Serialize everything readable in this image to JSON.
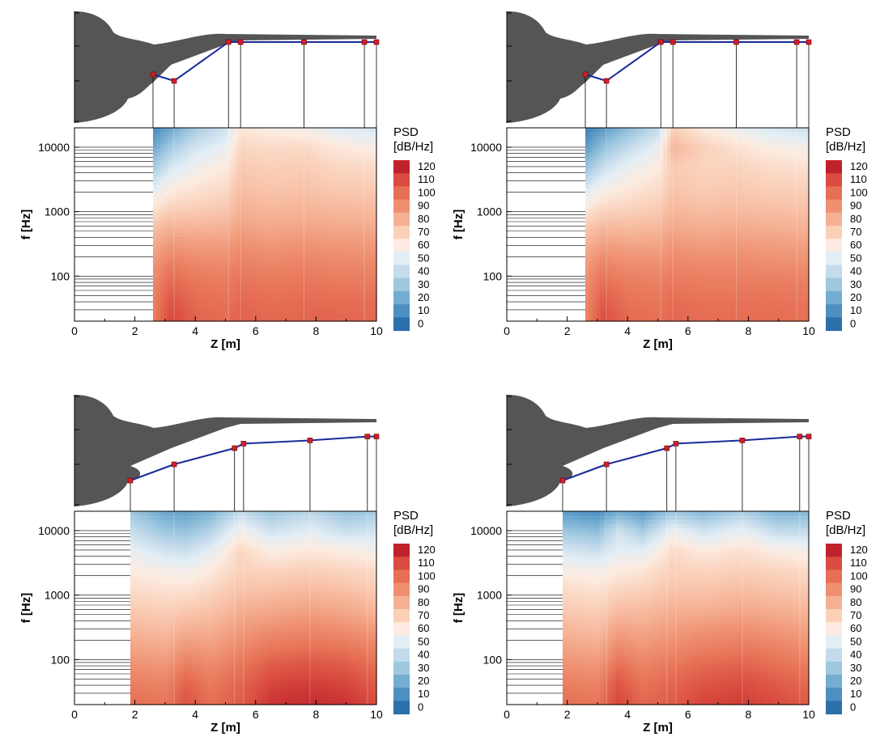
{
  "colorbar": {
    "title_line1": "PSD",
    "title_line2": "[dB/Hz]",
    "levels": [
      120,
      110,
      100,
      90,
      80,
      70,
      60,
      50,
      40,
      30,
      20,
      10,
      0
    ],
    "colors": [
      "#c0222c",
      "#d94c3f",
      "#e66f55",
      "#ee8f6f",
      "#f5b093",
      "#fad0b9",
      "#fcebe0",
      "#e4eef5",
      "#c3dbeb",
      "#9ec7e0",
      "#75add1",
      "#4d8fc0",
      "#2c6fab"
    ]
  },
  "chart_data": [
    {
      "type": "heatmap",
      "panel": "top-left",
      "xlabel": "Z [m]",
      "ylabel": "f [Hz]",
      "xlim": [
        0,
        10
      ],
      "ylim_hz": [
        20,
        20000
      ],
      "yscale": "log",
      "xticks": [
        0,
        2,
        4,
        6,
        8,
        10
      ],
      "yticks": [
        100,
        1000,
        10000
      ],
      "ytick_labels": [
        "100",
        "1000",
        "10000"
      ],
      "xtick_labels": [
        "0",
        "2",
        "4",
        "6",
        "8",
        "10"
      ],
      "data_z_start": 2.6,
      "probe_z": [
        2.6,
        3.3,
        5.1,
        5.5,
        7.6,
        9.6,
        10.0
      ],
      "profile_y": [
        0.6,
        0.7,
        0.1,
        0.1,
        0.1,
        0.1,
        0.1
      ],
      "cols": [
        {
          "z": 2.6,
          "psd": [
            95,
            94,
            92,
            88,
            82,
            74,
            62,
            48,
            32,
            18,
            8
          ]
        },
        {
          "z": 3.2,
          "psd": [
            112,
            108,
            102,
            96,
            88,
            79,
            69,
            58,
            46,
            32,
            18
          ]
        },
        {
          "z": 4.0,
          "psd": [
            104,
            101,
            98,
            93,
            86,
            78,
            70,
            62,
            55,
            45,
            32
          ]
        },
        {
          "z": 5.0,
          "psd": [
            101,
            99,
            96,
            92,
            86,
            79,
            72,
            66,
            60,
            52,
            44
          ]
        },
        {
          "z": 5.5,
          "psd": [
            104,
            102,
            99,
            95,
            90,
            84,
            79,
            75,
            72,
            68,
            62
          ]
        },
        {
          "z": 6.5,
          "psd": [
            102,
            100,
            97,
            93,
            88,
            82,
            77,
            73,
            70,
            66,
            58
          ]
        },
        {
          "z": 7.6,
          "psd": [
            103,
            101,
            98,
            94,
            89,
            83,
            78,
            74,
            71,
            67,
            56
          ]
        },
        {
          "z": 8.5,
          "psd": [
            103,
            101,
            97,
            93,
            88,
            82,
            77,
            72,
            68,
            62,
            50
          ]
        },
        {
          "z": 10.0,
          "psd": [
            102,
            100,
            96,
            92,
            87,
            81,
            76,
            71,
            66,
            58,
            45
          ]
        }
      ]
    },
    {
      "type": "heatmap",
      "panel": "top-right",
      "xlabel": "Z [m]",
      "ylabel": "f [Hz]",
      "xlim": [
        0,
        10
      ],
      "ylim_hz": [
        20,
        20000
      ],
      "yscale": "log",
      "xticks": [
        0,
        2,
        4,
        6,
        8,
        10
      ],
      "yticks": [
        100,
        1000,
        10000
      ],
      "ytick_labels": [
        "100",
        "1000",
        "10000"
      ],
      "xtick_labels": [
        "0",
        "2",
        "4",
        "6",
        "8",
        "10"
      ],
      "data_z_start": 2.6,
      "probe_z": [
        2.6,
        3.3,
        5.1,
        5.5,
        7.6,
        9.6,
        10.0
      ],
      "profile_y": [
        0.6,
        0.7,
        0.1,
        0.1,
        0.1,
        0.1,
        0.1
      ],
      "cols": [
        {
          "z": 2.6,
          "psd": [
            93,
            92,
            90,
            86,
            80,
            72,
            60,
            45,
            28,
            14,
            6
          ]
        },
        {
          "z": 3.2,
          "psd": [
            110,
            106,
            100,
            94,
            86,
            77,
            67,
            55,
            42,
            28,
            14
          ]
        },
        {
          "z": 4.0,
          "psd": [
            102,
            99,
            96,
            91,
            84,
            76,
            68,
            60,
            52,
            40,
            26
          ]
        },
        {
          "z": 5.0,
          "psd": [
            100,
            98,
            95,
            90,
            84,
            77,
            71,
            65,
            60,
            52,
            40
          ]
        },
        {
          "z": 5.5,
          "psd": [
            103,
            101,
            97,
            93,
            88,
            82,
            77,
            73,
            72,
            78,
            70
          ]
        },
        {
          "z": 6.5,
          "psd": [
            101,
            99,
            96,
            92,
            86,
            80,
            75,
            71,
            68,
            70,
            60
          ]
        },
        {
          "z": 7.6,
          "psd": [
            101,
            99,
            96,
            92,
            87,
            81,
            76,
            72,
            69,
            64,
            54
          ]
        },
        {
          "z": 8.5,
          "psd": [
            101,
            99,
            96,
            91,
            86,
            80,
            75,
            70,
            66,
            60,
            48
          ]
        },
        {
          "z": 10.0,
          "psd": [
            100,
            98,
            95,
            90,
            85,
            79,
            74,
            69,
            64,
            56,
            42
          ]
        }
      ]
    },
    {
      "type": "heatmap",
      "panel": "bottom-left",
      "xlabel": "Z [m]",
      "ylabel": "f [Hz]",
      "xlim": [
        0,
        10
      ],
      "ylim_hz": [
        20,
        20000
      ],
      "yscale": "log",
      "xticks": [
        0,
        2,
        4,
        6,
        8,
        10
      ],
      "yticks": [
        100,
        1000,
        10000
      ],
      "ytick_labels": [
        "100",
        "1000",
        "10000"
      ],
      "xtick_labels": [
        "0",
        "2",
        "4",
        "6",
        "8",
        "10"
      ],
      "data_z_start": 1.85,
      "probe_z": [
        1.85,
        3.3,
        5.3,
        5.6,
        7.8,
        9.7,
        10.0
      ],
      "profile_y": [
        0.95,
        0.7,
        0.45,
        0.38,
        0.33,
        0.27,
        0.27
      ],
      "cols": [
        {
          "z": 1.85,
          "psd": [
            100,
            96,
            90,
            84,
            78,
            72,
            66,
            60,
            52,
            42,
            30
          ]
        },
        {
          "z": 3.0,
          "psd": [
            98,
            94,
            88,
            82,
            76,
            70,
            64,
            56,
            44,
            30,
            18
          ]
        },
        {
          "z": 3.7,
          "psd": [
            108,
            104,
            96,
            88,
            80,
            72,
            64,
            55,
            42,
            28,
            16
          ]
        },
        {
          "z": 4.5,
          "psd": [
            100,
            97,
            92,
            86,
            80,
            74,
            68,
            60,
            50,
            36,
            22
          ]
        },
        {
          "z": 5.5,
          "psd": [
            106,
            103,
            98,
            92,
            86,
            80,
            74,
            70,
            68,
            56,
            40
          ]
        },
        {
          "z": 6.5,
          "psd": [
            116,
            112,
            106,
            98,
            90,
            82,
            75,
            68,
            58,
            44,
            30
          ]
        },
        {
          "z": 7.8,
          "psd": [
            118,
            114,
            108,
            100,
            92,
            84,
            77,
            70,
            62,
            50,
            38
          ]
        },
        {
          "z": 9.0,
          "psd": [
            116,
            112,
            106,
            98,
            90,
            82,
            75,
            68,
            58,
            42,
            28
          ]
        },
        {
          "z": 10.0,
          "psd": [
            110,
            106,
            100,
            94,
            86,
            78,
            72,
            66,
            56,
            44,
            32
          ]
        }
      ]
    },
    {
      "type": "heatmap",
      "panel": "bottom-right",
      "xlabel": "Z [m]",
      "ylabel": "f [Hz]",
      "xlim": [
        0,
        10
      ],
      "ylim_hz": [
        20,
        20000
      ],
      "yscale": "log",
      "xticks": [
        0,
        2,
        4,
        6,
        8,
        10
      ],
      "yticks": [
        100,
        1000,
        10000
      ],
      "ytick_labels": [
        "100",
        "1000",
        "10000"
      ],
      "xtick_labels": [
        "0",
        "2",
        "4",
        "6",
        "8",
        "10"
      ],
      "data_z_start": 1.85,
      "probe_z": [
        1.85,
        3.3,
        5.3,
        5.6,
        7.8,
        9.7,
        10.0
      ],
      "profile_y": [
        0.95,
        0.7,
        0.45,
        0.38,
        0.33,
        0.27,
        0.27
      ],
      "cols": [
        {
          "z": 1.85,
          "psd": [
            100,
            96,
            90,
            84,
            78,
            72,
            66,
            58,
            46,
            30,
            14
          ]
        },
        {
          "z": 3.0,
          "psd": [
            98,
            94,
            88,
            82,
            76,
            70,
            64,
            56,
            42,
            26,
            10
          ]
        },
        {
          "z": 3.7,
          "psd": [
            112,
            108,
            100,
            92,
            84,
            76,
            68,
            60,
            50,
            44,
            20
          ]
        },
        {
          "z": 4.5,
          "psd": [
            102,
            99,
            94,
            88,
            82,
            76,
            70,
            62,
            50,
            32,
            14
          ]
        },
        {
          "z": 5.5,
          "psd": [
            106,
            103,
            98,
            92,
            86,
            80,
            74,
            70,
            66,
            54,
            30
          ]
        },
        {
          "z": 6.5,
          "psd": [
            112,
            108,
            102,
            95,
            88,
            80,
            74,
            68,
            60,
            44,
            24
          ]
        },
        {
          "z": 7.8,
          "psd": [
            114,
            110,
            104,
            97,
            90,
            82,
            76,
            70,
            64,
            52,
            34
          ]
        },
        {
          "z": 9.0,
          "psd": [
            110,
            106,
            100,
            94,
            87,
            80,
            74,
            68,
            58,
            40,
            22
          ]
        },
        {
          "z": 10.0,
          "psd": [
            106,
            102,
            96,
            90,
            84,
            78,
            72,
            66,
            56,
            40,
            24
          ]
        }
      ]
    }
  ]
}
